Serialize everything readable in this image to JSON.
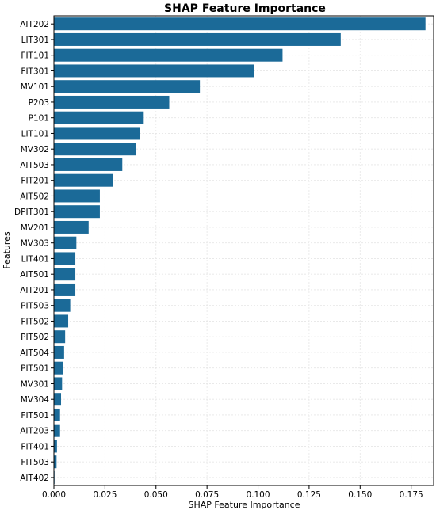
{
  "chart_data": {
    "type": "bar",
    "orientation": "horizontal",
    "title": "SHAP Feature Importance",
    "xlabel": "SHAP Feature Importance",
    "ylabel": "Features",
    "xlim": [
      0,
      0.186
    ],
    "xticks": [
      "0.000",
      "0.025",
      "0.050",
      "0.075",
      "0.100",
      "0.125",
      "0.150",
      "0.175"
    ],
    "grid": true,
    "bar_color": "#1b6a98",
    "categories": [
      "AIT202",
      "LIT301",
      "FIT101",
      "FIT301",
      "MV101",
      "P203",
      "P101",
      "LIT101",
      "MV302",
      "AIT503",
      "FIT201",
      "AIT502",
      "DPIT301",
      "MV201",
      "MV303",
      "LIT401",
      "AIT501",
      "AIT201",
      "PIT503",
      "FIT502",
      "PIT502",
      "AIT504",
      "PIT501",
      "MV301",
      "MV304",
      "FIT501",
      "AIT203",
      "FIT401",
      "FIT503",
      "AIT402"
    ],
    "values": [
      0.182,
      0.1405,
      0.112,
      0.098,
      0.0715,
      0.0565,
      0.044,
      0.042,
      0.04,
      0.0335,
      0.029,
      0.0225,
      0.0225,
      0.017,
      0.011,
      0.0105,
      0.0105,
      0.0105,
      0.008,
      0.007,
      0.0055,
      0.005,
      0.0045,
      0.004,
      0.0035,
      0.003,
      0.003,
      0.0015,
      0.0013,
      0.0003
    ]
  }
}
